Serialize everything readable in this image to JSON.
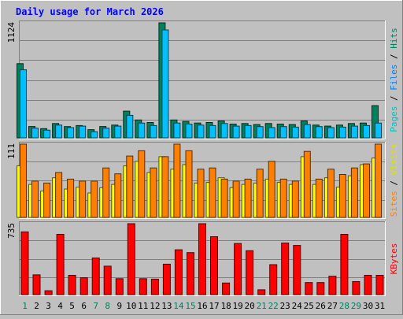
{
  "chart_data": {
    "type": "bar",
    "title": "Daily usage for March 2026",
    "categories": [
      "1",
      "2",
      "3",
      "4",
      "5",
      "6",
      "7",
      "8",
      "9",
      "10",
      "11",
      "12",
      "13",
      "14",
      "15",
      "16",
      "17",
      "18",
      "19",
      "20",
      "21",
      "22",
      "23",
      "24",
      "25",
      "26",
      "27",
      "28",
      "29",
      "30",
      "31"
    ],
    "weekend_days": [
      "1",
      "7",
      "8",
      "14",
      "15",
      "21",
      "22",
      "28",
      "29"
    ],
    "panels": [
      {
        "id": "hits-files",
        "max_label": "1124",
        "ylim": [
          0,
          1124
        ],
        "series": [
          {
            "name": "Hits",
            "color": "#00805c",
            "values": [
              725,
              111,
              90,
              140,
              110,
              120,
              80,
              111,
              125,
              261,
              175,
              150,
              1124,
              175,
              160,
              145,
              150,
              165,
              135,
              140,
              130,
              140,
              135,
              130,
              165,
              125,
              115,
              125,
              140,
              145,
              315
            ]
          },
          {
            "name": "Files",
            "color": "#00c0ff",
            "values": [
              665,
              95,
              75,
              125,
              100,
              115,
              60,
              95,
              115,
              220,
              145,
              120,
              1055,
              145,
              135,
              125,
              120,
              140,
              115,
              120,
              110,
              100,
              110,
              105,
              130,
              110,
              100,
              105,
              115,
              120,
              145
            ]
          }
        ],
        "right_labels": [
          {
            "text": "Pages",
            "color": "#00c0c0"
          },
          {
            "text": " / ",
            "color": "#000000"
          },
          {
            "text": "Files",
            "color": "#0080ff"
          },
          {
            "text": " / ",
            "color": "#000000"
          },
          {
            "text": "Hits",
            "color": "#00805c"
          }
        ]
      },
      {
        "id": "visits-sites",
        "max_label": "111",
        "ylim": [
          0,
          111
        ],
        "series": [
          {
            "name": "Visits",
            "color": "#ffff00",
            "values": [
              78,
              50,
              40,
              60,
              43,
              46,
              37,
              45,
              50,
              78,
              85,
              68,
              92,
              73,
              80,
              52,
              53,
              60,
              45,
              50,
              52,
              58,
              53,
              50,
              92,
              50,
              60,
              46,
              63,
              80,
              90
            ]
          },
          {
            "name": "Sites",
            "color": "#ff8000",
            "values": [
              111,
              55,
              52,
              68,
              58,
              55,
              55,
              75,
              66,
              93,
              101,
              75,
              92,
              111,
              101,
              73,
              75,
              58,
              55,
              58,
              73,
              85,
              58,
              55,
              100,
              58,
              73,
              65,
              75,
              81,
              111
            ]
          }
        ],
        "right_labels": [
          {
            "text": "Sites",
            "color": "#ff8000"
          },
          {
            "text": " / ",
            "color": "#000000"
          },
          {
            "text": "Visits",
            "color": "#e0e000"
          }
        ]
      },
      {
        "id": "kbytes",
        "max_label": "735",
        "ylim": [
          0,
          735
        ],
        "series": [
          {
            "name": "KBytes",
            "color": "#ff0000",
            "values": [
              650,
              205,
              40,
              625,
              200,
              175,
              380,
              295,
              165,
              735,
              165,
              160,
              315,
              465,
              435,
              735,
              600,
              120,
              530,
              455,
              50,
              310,
              535,
              510,
              125,
              125,
              190,
              625,
              135,
              200,
              200
            ]
          }
        ],
        "right_labels": [
          {
            "text": "KBytes",
            "color": "#ff0000"
          }
        ]
      }
    ]
  }
}
